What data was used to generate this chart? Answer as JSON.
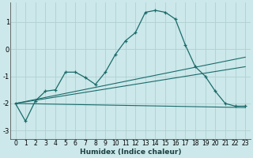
{
  "xlabel": "Humidex (Indice chaleur)",
  "background_color": "#cce8ea",
  "grid_color": "#b0d0d2",
  "line_color": "#1a6b6b",
  "xlim": [
    -0.5,
    23.5
  ],
  "ylim": [
    -3.3,
    1.7
  ],
  "yticks": [
    -3,
    -2,
    -1,
    0,
    1
  ],
  "xticks": [
    0,
    1,
    2,
    3,
    4,
    5,
    6,
    7,
    8,
    9,
    10,
    11,
    12,
    13,
    14,
    15,
    16,
    17,
    18,
    19,
    20,
    21,
    22,
    23
  ],
  "main_curve_x": [
    0,
    1,
    2,
    3,
    4,
    5,
    6,
    7,
    8,
    9,
    10,
    11,
    12,
    13,
    14,
    15,
    16,
    17,
    18,
    19,
    20,
    21,
    22,
    23
  ],
  "main_curve_y": [
    -2.0,
    -2.65,
    -1.9,
    -1.55,
    -1.5,
    -0.85,
    -0.85,
    -1.05,
    -1.3,
    -0.85,
    -0.2,
    0.3,
    0.6,
    1.35,
    1.42,
    1.35,
    1.1,
    0.15,
    -0.65,
    -1.0,
    -1.55,
    -2.0,
    -2.1,
    -2.1
  ],
  "line1_x": [
    0,
    23
  ],
  "line1_y": [
    -2.0,
    -2.15
  ],
  "line2_x": [
    0,
    23
  ],
  "line2_y": [
    -2.0,
    -0.65
  ],
  "line3_x": [
    0,
    23
  ],
  "line3_y": [
    -2.0,
    -0.3
  ]
}
